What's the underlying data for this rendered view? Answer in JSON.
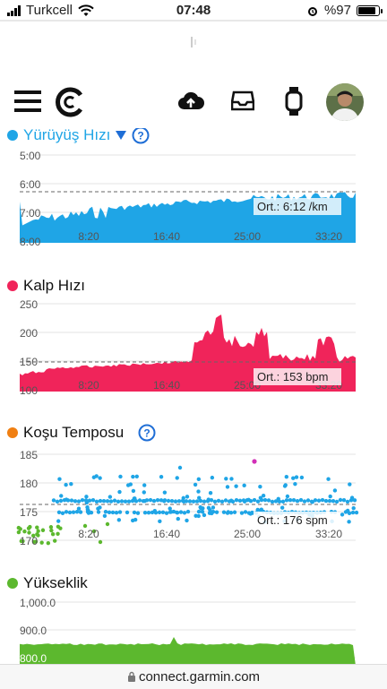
{
  "status_bar": {
    "carrier": "Turkcell",
    "time": "07:48",
    "battery": "%97",
    "battery_level": 0.97
  },
  "address_bar": {
    "url": "connect.garmin.com"
  },
  "nav": {
    "menu_icon": "hamburger-menu-icon",
    "logo_icon": "garmin-connect-logo-icon",
    "upload_icon": "cloud-upload-icon",
    "inbox_icon": "inbox-tray-icon",
    "device_icon": "watch-icon",
    "avatar_icon": "user-avatar"
  },
  "colors": {
    "walk": "#1fa5e6",
    "heart": "#f0245a",
    "cadence_dot": "#f07f12",
    "elevation": "#5cb82e",
    "grid": "#dddddd"
  },
  "x_ticks": [
    "8:20",
    "16:40",
    "25:00",
    "33:20"
  ],
  "walk_speed": {
    "title": "Yürüyüş Hızı",
    "help_icon": "help-circle-icon",
    "dropdown_icon": "caret-down-icon",
    "avg_label": "Ort.: 6:12 /km",
    "y_ticks": [
      "5:00",
      "6:00",
      "7:00",
      "8:00"
    ]
  },
  "heart_rate": {
    "title": "Kalp Hızı",
    "avg_label": "Ort.: 153 bpm",
    "y_ticks": [
      "250",
      "200",
      "150",
      "100"
    ]
  },
  "cadence": {
    "title": "Koşu Temposu",
    "help_icon": "help-circle-icon",
    "avg_label": "Ort.: 176 spm",
    "y_ticks": [
      "185",
      "180",
      "175",
      "170"
    ]
  },
  "elevation": {
    "title": "Yükseklik",
    "y_ticks": [
      "1,000.0",
      "900.0",
      "800.0"
    ]
  }
}
